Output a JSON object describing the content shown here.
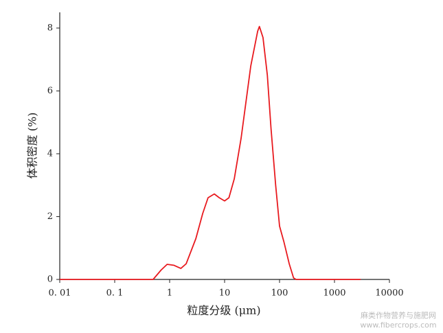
{
  "chart_data": {
    "type": "line",
    "x_label": "粒度分级 (μm)",
    "y_label": "体积密度 (%)",
    "x": [
      0.01,
      0.5,
      0.7,
      0.9,
      1.2,
      1.6,
      2,
      3,
      4,
      5,
      6.5,
      8,
      10,
      12,
      15,
      20,
      30,
      40,
      43,
      50,
      60,
      70,
      85,
      100,
      120,
      150,
      180,
      200,
      3000
    ],
    "series": [
      {
        "name": "体积密度",
        "color": "#e8191e",
        "values": [
          0,
          0,
          0.3,
          0.48,
          0.45,
          0.35,
          0.5,
          1.3,
          2.1,
          2.6,
          2.72,
          2.6,
          2.5,
          2.6,
          3.2,
          4.5,
          6.8,
          7.9,
          8.05,
          7.7,
          6.5,
          4.8,
          3.0,
          1.7,
          1.2,
          0.5,
          0.05,
          0,
          0
        ]
      }
    ],
    "xlim": [
      0.01,
      10000
    ],
    "xticks": [
      {
        "value": 0.01,
        "label": "0. 01"
      },
      {
        "value": 0.1,
        "label": "0. 1"
      },
      1,
      10,
      100,
      1000,
      10000
    ],
    "xscale": "log",
    "ylim": [
      0,
      8.5
    ],
    "yticks": [
      0,
      2,
      4,
      6,
      8
    ],
    "grid": false
  },
  "watermark": {
    "line1": "麻类作物营养与施肥网",
    "line2": "www.fibercrops.com"
  }
}
